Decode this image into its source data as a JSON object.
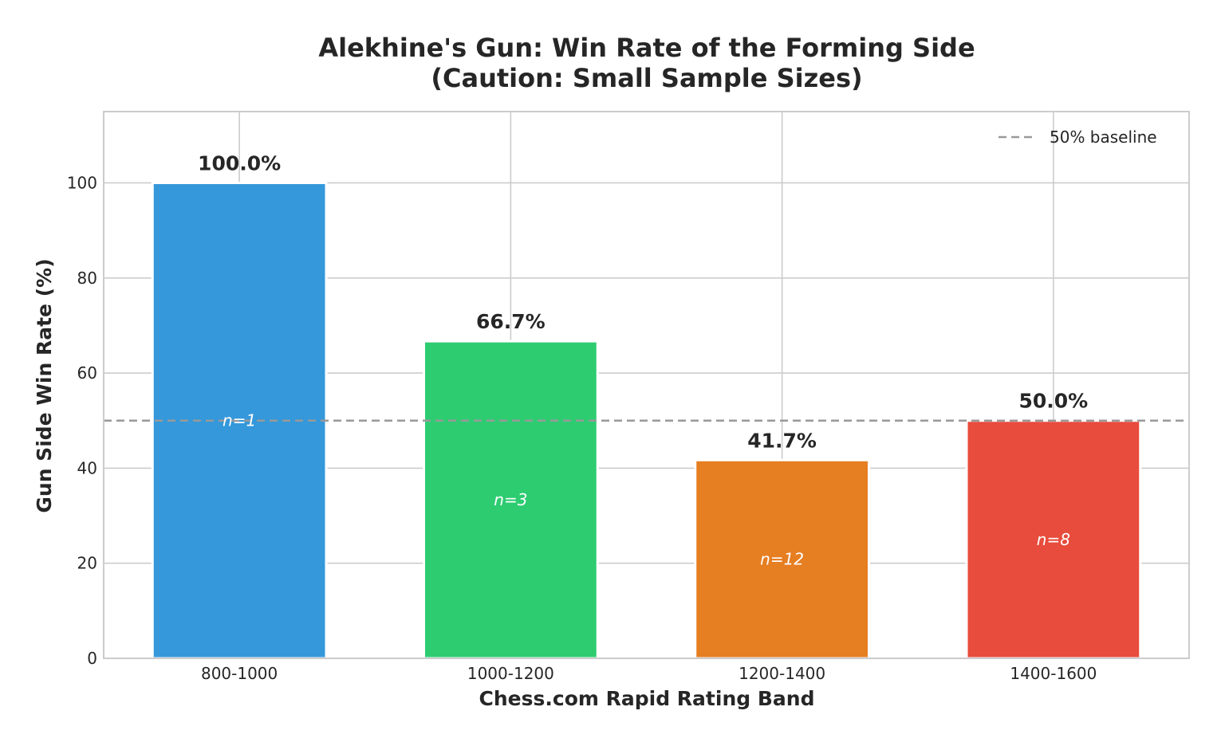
{
  "chart_data": {
    "type": "bar",
    "title_line1": "Alekhine's Gun: Win Rate of the Forming Side",
    "title_line2": "(Caution: Small Sample Sizes)",
    "xlabel": "Chess.com Rapid Rating Band",
    "ylabel": "Gun Side Win Rate (%)",
    "categories": [
      "800-1000",
      "1000-1200",
      "1200-1400",
      "1400-1600"
    ],
    "values": [
      100.0,
      66.7,
      41.7,
      50.0
    ],
    "value_labels": [
      "100.0%",
      "66.7%",
      "41.7%",
      "50.0%"
    ],
    "sample_labels": [
      "n=1",
      "n=3",
      "n=12",
      "n=8"
    ],
    "sample_sizes": [
      1,
      3,
      12,
      8
    ],
    "colors": [
      "#3498db",
      "#2ecc71",
      "#e67e22",
      "#e74c3c"
    ],
    "ylim": [
      0,
      115
    ],
    "yticks": [
      0,
      20,
      40,
      60,
      80,
      100
    ],
    "ytick_labels": [
      "0",
      "20",
      "40",
      "60",
      "80",
      "100"
    ],
    "baseline": {
      "value": 50,
      "label": "50% baseline",
      "color": "#999999",
      "style": "dashed"
    },
    "grid": true,
    "legend_position": "top-right"
  }
}
